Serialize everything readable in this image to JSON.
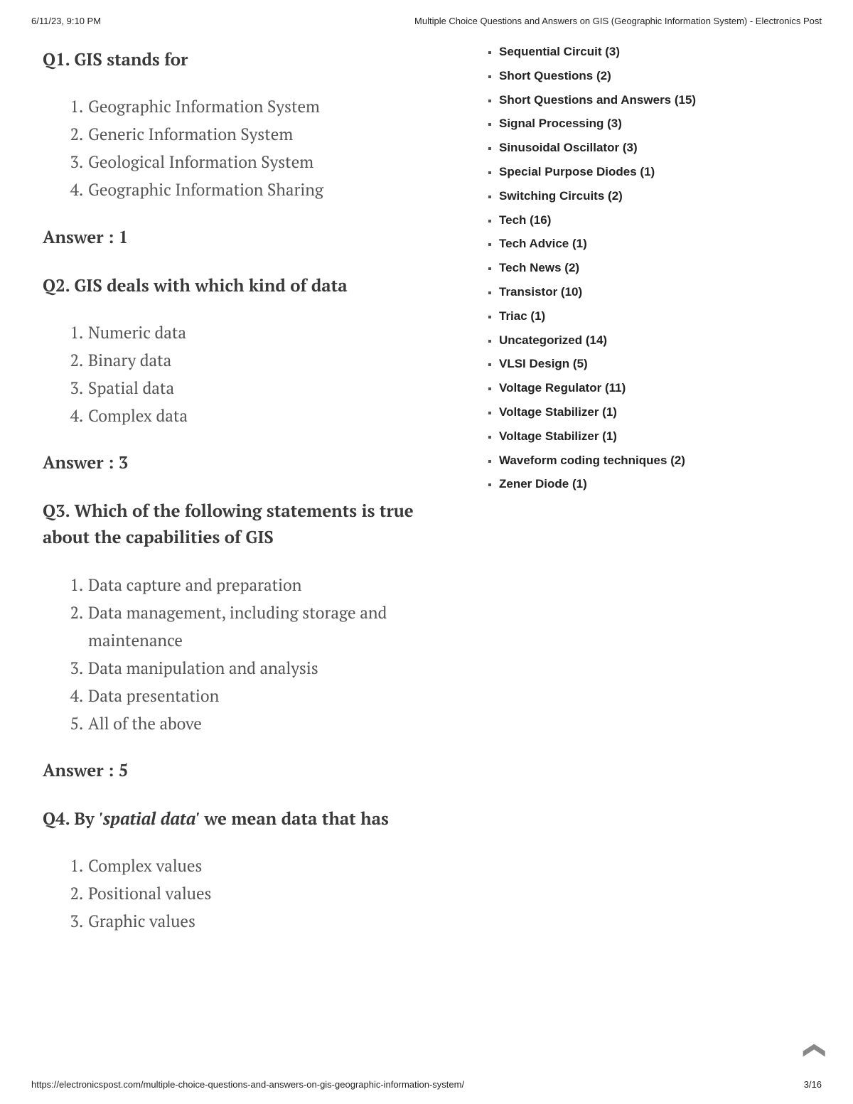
{
  "header": {
    "datetime": "6/11/23, 9:10 PM",
    "title": "Multiple Choice Questions and Answers on GIS (Geographic Information System) - Electronics Post"
  },
  "footer": {
    "url": "https://electronicspost.com/multiple-choice-questions-and-answers-on-gis-geographic-information-system/",
    "page": "3/16"
  },
  "questions": [
    {
      "heading_pre": "Q1. GIS stands for",
      "heading_italic": "",
      "heading_post": "",
      "options": [
        "Geographic Information System",
        "Generic Information System",
        "Geological Information System",
        "Geographic Information Sharing"
      ],
      "answer": "Answer : 1"
    },
    {
      "heading_pre": "Q2. GIS deals with which kind of data",
      "heading_italic": "",
      "heading_post": "",
      "options": [
        "Numeric data",
        "Binary data",
        "Spatial data",
        "Complex data"
      ],
      "answer": "Answer : 3"
    },
    {
      "heading_pre": "Q3. Which of the following statements is true about the capabilities of GIS",
      "heading_italic": "",
      "heading_post": "",
      "options": [
        "Data capture and preparation",
        "Data management, including storage and maintenance",
        "Data manipulation and analysis",
        "Data presentation",
        "All of the above"
      ],
      "answer": "Answer : 5"
    },
    {
      "heading_pre": "Q4. By ",
      "heading_italic": "'spatial data'",
      "heading_post": " we mean data that has",
      "options": [
        "Complex values",
        "Positional values",
        "Graphic values"
      ],
      "answer": ""
    }
  ],
  "categories": [
    {
      "label": "Sequential Circuit",
      "count": "(3)"
    },
    {
      "label": "Short Questions",
      "count": "(2)"
    },
    {
      "label": "Short Questions and Answers",
      "count": "(15)"
    },
    {
      "label": "Signal Processing",
      "count": "(3)"
    },
    {
      "label": "Sinusoidal Oscillator",
      "count": "(3)"
    },
    {
      "label": "Special Purpose Diodes",
      "count": "(1)"
    },
    {
      "label": "Switching Circuits",
      "count": "(2)"
    },
    {
      "label": "Tech",
      "count": "(16)"
    },
    {
      "label": "Tech Advice",
      "count": "(1)"
    },
    {
      "label": "Tech News",
      "count": "(2)"
    },
    {
      "label": "Transistor",
      "count": "(10)"
    },
    {
      "label": "Triac",
      "count": "(1)"
    },
    {
      "label": "Uncategorized",
      "count": "(14)"
    },
    {
      "label": "VLSI Design",
      "count": "(5)"
    },
    {
      "label": "Voltage Regulator",
      "count": "(11)"
    },
    {
      "label": "Voltage Stabilizer",
      "count": "(1)"
    },
    {
      "label": "Voltage Stabilizer",
      "count": "(1)"
    },
    {
      "label": "Waveform coding techniques",
      "count": "(2)"
    },
    {
      "label": "Zener Diode",
      "count": "(1)"
    }
  ],
  "scroll_top_glyph": "❯"
}
